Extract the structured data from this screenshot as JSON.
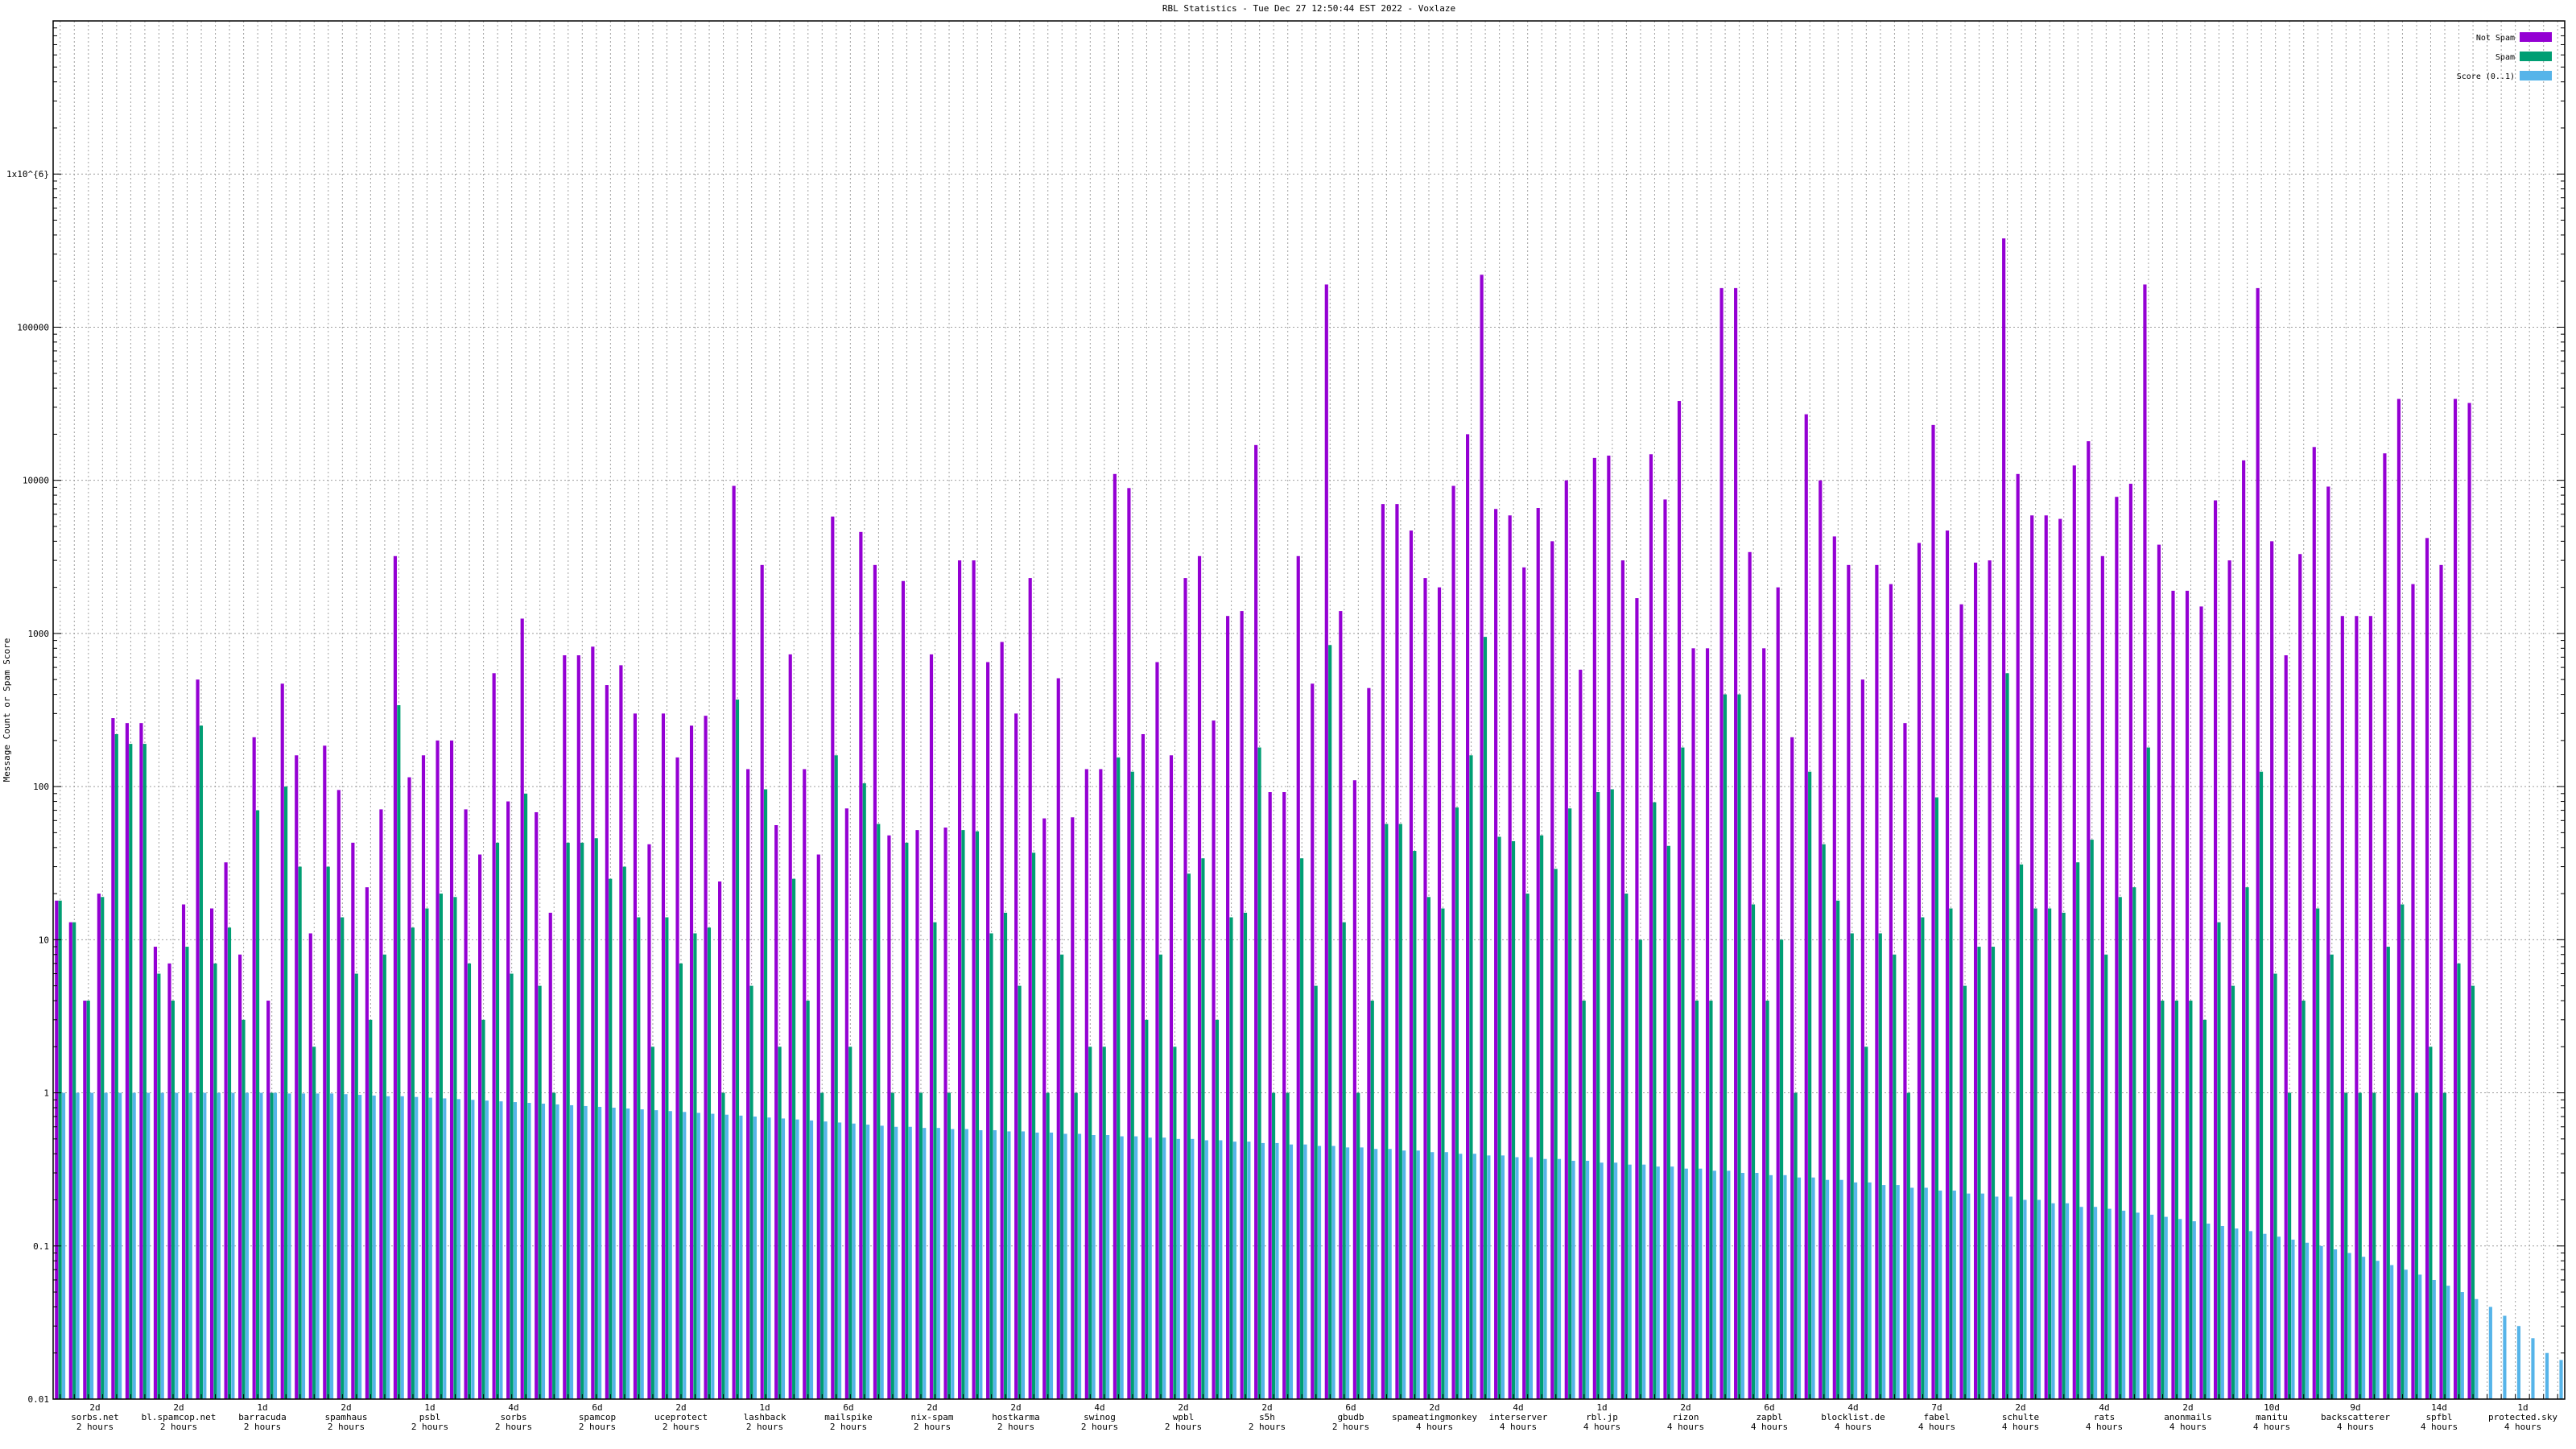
{
  "chart_data": {
    "type": "bar",
    "title": "RBL Statistics - Tue Dec 27 12:50:44 EST 2022 - Voxlaze",
    "ylabel": "Message Count or Spam Score",
    "yscale": "log",
    "ylim": [
      0.01,
      10000000.0
    ],
    "y_ticks": [
      "0.01",
      "0.1",
      "1",
      "10",
      "100",
      "1000",
      "10000",
      "100000",
      "1x10^{6}"
    ],
    "grid": true,
    "legend_position": "top-right",
    "series": [
      {
        "name": "Not Spam",
        "color": "#9400d3"
      },
      {
        "name": "Spam",
        "color": "#009e73"
      },
      {
        "name": "Score (0..1)",
        "color": "#56b4e9"
      }
    ],
    "not_spam": [
      18,
      13,
      4,
      20,
      280,
      260,
      260,
      9,
      7,
      17,
      500,
      16,
      32,
      8,
      210,
      4,
      470,
      160,
      11,
      185,
      95,
      43,
      22,
      71,
      3200,
      115,
      160,
      200,
      200,
      71,
      36,
      550,
      80,
      1250,
      68,
      15,
      720,
      720,
      820,
      460,
      620,
      300,
      42,
      300,
      155,
      250,
      290,
      24,
      9200,
      130,
      2800,
      56,
      730,
      130,
      36,
      5800,
      72,
      4600,
      2800,
      48,
      2200,
      52,
      730,
      54,
      3000,
      3000,
      650,
      880,
      300,
      2300,
      62,
      510,
      63,
      130,
      130,
      11000,
      8900,
      220,
      650,
      160,
      2300,
      3200,
      270,
      1300,
      1400,
      17000,
      92,
      92,
      3200,
      470,
      190000,
      1400,
      110,
      440,
      7000,
      7000,
      4700,
      2300,
      2000,
      9200,
      20000,
      220000,
      6500,
      5900,
      2700,
      6600,
      4000,
      10000,
      580,
      14000,
      14500,
      3000,
      1700,
      14800,
      7500,
      33000,
      800,
      800,
      180000,
      180000,
      3400,
      800,
      2000,
      210,
      27000,
      10000,
      4300,
      2800,
      500,
      2800,
      2100,
      260,
      3900,
      23000,
      4700,
      1550,
      2900,
      3000,
      380000,
      11000,
      5900,
      5900,
      5600,
      12500,
      18000,
      3200,
      7800,
      9500,
      190000,
      3800,
      1900,
      1900,
      1500,
      7400,
      3000,
      13500,
      180000,
      4000,
      720,
      3300,
      16500,
      9100,
      1300,
      1300,
      1300,
      15000,
      34000,
      2100,
      4200,
      2800,
      34000,
      32000
    ],
    "spam": [
      18,
      13,
      4,
      19,
      220,
      190,
      190,
      6,
      4,
      9,
      250,
      7,
      12,
      3,
      70,
      1,
      100,
      30,
      2,
      30,
      14,
      6,
      3,
      8,
      340,
      12,
      16,
      20,
      19,
      7,
      3,
      43,
      6,
      90,
      5,
      1,
      43,
      43,
      46,
      25,
      30,
      14,
      2,
      14,
      7,
      11,
      12,
      1,
      370,
      5,
      96,
      2,
      25,
      4,
      1,
      160,
      2,
      105,
      57,
      1,
      43,
      1,
      13,
      1,
      52,
      51,
      11,
      15,
      5,
      37,
      1,
      8,
      1,
      2,
      2,
      155,
      125,
      3,
      8,
      2,
      27,
      34,
      3,
      14,
      15,
      180,
      1,
      1,
      34,
      5,
      840,
      13,
      1,
      4,
      57,
      57,
      38,
      19,
      16,
      73,
      160,
      950,
      47,
      44,
      20,
      48,
      29,
      72,
      4,
      92,
      96,
      20,
      10,
      79,
      41,
      180,
      4,
      4,
      400,
      400,
      17,
      4,
      10,
      1,
      125,
      42,
      18,
      11,
      2,
      11,
      8,
      1,
      14,
      85,
      16,
      5,
      9,
      9,
      550,
      31,
      16,
      16,
      15,
      32,
      45,
      8,
      19,
      22,
      180,
      4,
      4,
      4,
      3,
      13,
      5,
      22,
      125,
      6,
      1,
      4,
      16,
      8,
      1,
      1,
      1,
      9,
      17,
      1,
      2,
      1,
      7,
      5
    ],
    "score": [
      1,
      1,
      1,
      1,
      1,
      1,
      1,
      1,
      1,
      1,
      1,
      1,
      1,
      1,
      1,
      1,
      0.99,
      0.99,
      0.99,
      0.99,
      0.98,
      0.97,
      0.96,
      0.95,
      0.95,
      0.94,
      0.93,
      0.92,
      0.91,
      0.9,
      0.89,
      0.88,
      0.87,
      0.86,
      0.85,
      0.84,
      0.83,
      0.82,
      0.81,
      0.8,
      0.79,
      0.78,
      0.77,
      0.76,
      0.75,
      0.74,
      0.73,
      0.72,
      0.71,
      0.7,
      0.69,
      0.68,
      0.67,
      0.66,
      0.65,
      0.64,
      0.63,
      0.62,
      0.61,
      0.6,
      0.6,
      0.59,
      0.59,
      0.58,
      0.58,
      0.57,
      0.57,
      0.56,
      0.56,
      0.55,
      0.55,
      0.54,
      0.54,
      0.53,
      0.53,
      0.52,
      0.52,
      0.51,
      0.51,
      0.5,
      0.5,
      0.49,
      0.49,
      0.48,
      0.48,
      0.47,
      0.47,
      0.46,
      0.46,
      0.45,
      0.45,
      0.44,
      0.44,
      0.43,
      0.43,
      0.42,
      0.42,
      0.41,
      0.41,
      0.4,
      0.4,
      0.39,
      0.39,
      0.38,
      0.38,
      0.37,
      0.37,
      0.36,
      0.36,
      0.35,
      0.35,
      0.34,
      0.34,
      0.33,
      0.33,
      0.32,
      0.32,
      0.31,
      0.31,
      0.3,
      0.3,
      0.29,
      0.29,
      0.28,
      0.28,
      0.27,
      0.27,
      0.26,
      0.26,
      0.25,
      0.25,
      0.24,
      0.24,
      0.23,
      0.23,
      0.22,
      0.22,
      0.21,
      0.21,
      0.2,
      0.2,
      0.19,
      0.19,
      0.18,
      0.18,
      0.175,
      0.17,
      0.165,
      0.16,
      0.155,
      0.15,
      0.145,
      0.14,
      0.135,
      0.13,
      0.125,
      0.12,
      0.115,
      0.11,
      0.105,
      0.1,
      0.095,
      0.09,
      0.085,
      0.08,
      0.075,
      0.07,
      0.065,
      0.06,
      0.055,
      0.05,
      0.045,
      0.04,
      0.035,
      0.03,
      0.025,
      0.02,
      0.018
    ],
    "x_tick_labels": [
      "2d\nsorbs.net\n2 hours",
      "2d\nbl.spamcop.net\n2 hours",
      "1d\nbarracuda\n2 hours",
      "2d\nspamhaus\n2 hours",
      "1d\npsbl\n2 hours",
      "4d\nsorbs\n2 hours",
      "6d\nspamcop\n2 hours",
      "2d\nuceprotect\n2 hours",
      "1d\nlashback\n2 hours",
      "6d\nmailspike\n2 hours",
      "2d\nnix-spam\n2 hours",
      "2d\nhostkarma\n2 hours",
      "4d\nswinog\n2 hours",
      "2d\nwpbl\n2 hours",
      "2d\ns5h\n2 hours",
      "6d\ngbudb\n2 hours",
      "2d\nspameatingmonkey\n4 hours",
      "4d\ninterserver\n4 hours",
      "1d\nrbl.jp\n4 hours",
      "2d\nrizon\n4 hours",
      "6d\nzapbl\n4 hours",
      "4d\nblocklist.de\n4 hours",
      "7d\nfabel\n4 hours",
      "2d\nschulte\n4 hours",
      "4d\nrats\n4 hours",
      "2d\nanonmails\n4 hours",
      "10d\nmanitu\n4 hours",
      "9d\nbackscatterer\n4 hours",
      "14d\nspfbl\n4 hours",
      "1d\nprotected.sky\n4 hours"
    ]
  }
}
